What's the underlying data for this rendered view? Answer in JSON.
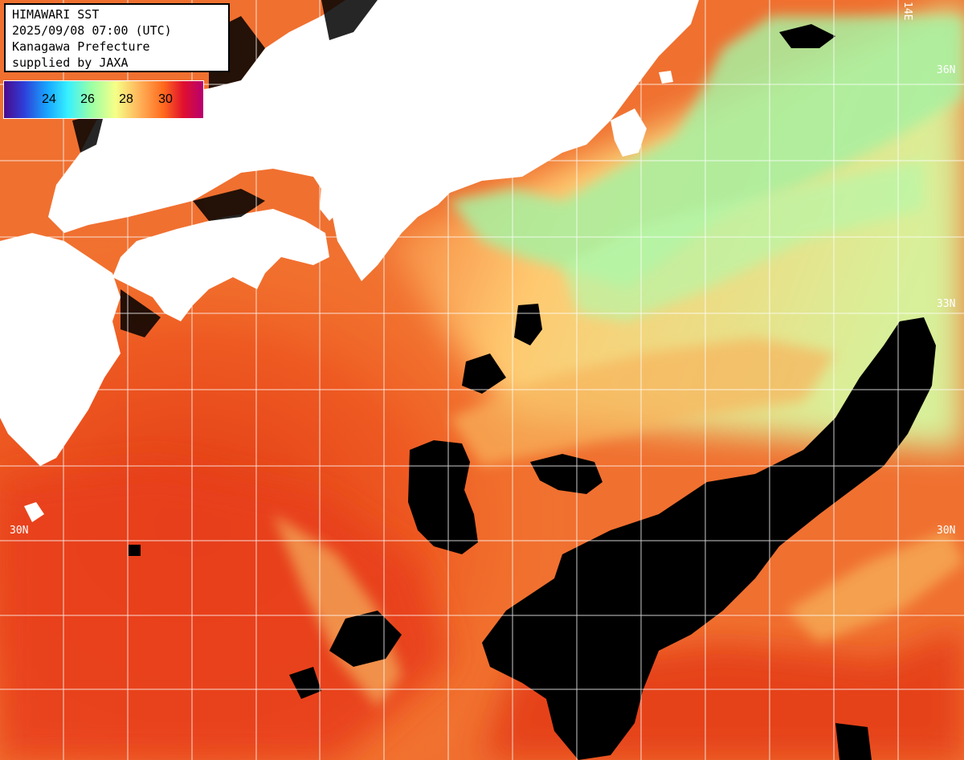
{
  "header": {
    "line1": "HIMAWARI SST",
    "line2": "2025/09/08 07:00 (UTC)",
    "line3": "Kanagawa Prefecture",
    "line4": "supplied by JAXA"
  },
  "color_scale": {
    "ticks": [
      "24",
      "26",
      "28",
      "30"
    ]
  },
  "grid_labels": {
    "lon_top": "14E",
    "lat_36_right": "36N",
    "lat_33_right": "33N",
    "lat_30_left": "30N",
    "lat_30_right": "30N"
  },
  "colors": {
    "land": "#ffffff",
    "cloud_mask": "#000000",
    "warm_sea": "#e0401c",
    "mid_sea": "#ff8a30",
    "cool_sea": "#9cf5a0",
    "gridline": "#ffffff"
  }
}
